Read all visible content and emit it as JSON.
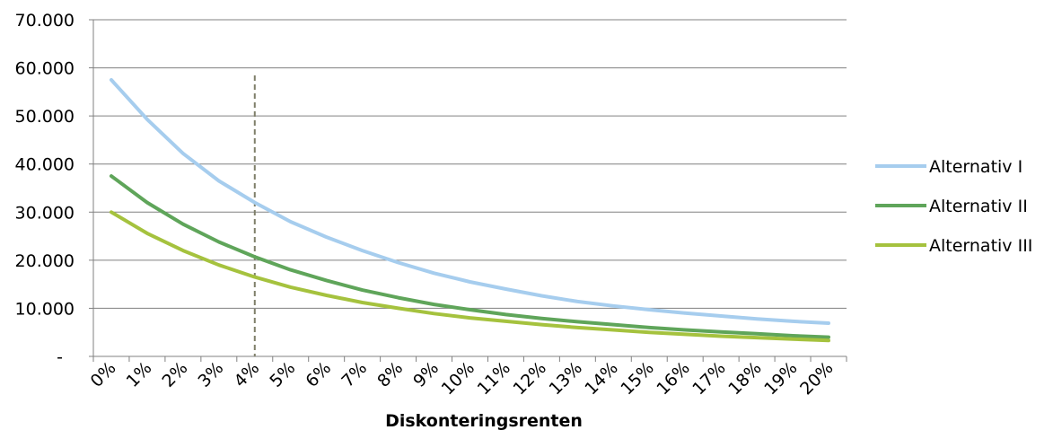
{
  "chart_data": {
    "type": "line",
    "xlabel": "Diskonteringsrenten",
    "ylabel": "",
    "categories": [
      "0%",
      "1%",
      "2%",
      "3%",
      "4%",
      "5%",
      "6%",
      "7%",
      "8%",
      "9%",
      "10%",
      "11%",
      "12%",
      "13%",
      "14%",
      "15%",
      "16%",
      "17%",
      "18%",
      "19%",
      "20%"
    ],
    "y_tick_labels": [
      "-",
      "10.000",
      "20.000",
      "30.000",
      "40.000",
      "50.000",
      "60.000",
      "70.000"
    ],
    "ylim": [
      0,
      70000
    ],
    "grid": true,
    "legend_position": "right",
    "reference_line": {
      "category": "4%",
      "style": "dashed",
      "color": "#7f7f6a"
    },
    "series": [
      {
        "name": "Alternativ I",
        "color": "#a6cdee",
        "values": [
          57500,
          49300,
          42200,
          36500,
          32000,
          28000,
          24800,
          22000,
          19500,
          17300,
          15500,
          14000,
          12600,
          11400,
          10500,
          9700,
          9000,
          8400,
          7800,
          7300,
          6900
        ]
      },
      {
        "name": "Alternativ II",
        "color": "#5fa55a",
        "values": [
          37500,
          32000,
          27500,
          23800,
          20700,
          18000,
          15800,
          13800,
          12200,
          10800,
          9700,
          8700,
          7900,
          7200,
          6600,
          6000,
          5500,
          5100,
          4700,
          4300,
          4000
        ]
      },
      {
        "name": "Alternativ III",
        "color": "#a5c23e",
        "values": [
          30000,
          25600,
          22000,
          19000,
          16500,
          14400,
          12700,
          11200,
          10000,
          8900,
          8000,
          7300,
          6600,
          6000,
          5500,
          5000,
          4600,
          4200,
          3900,
          3600,
          3300
        ]
      }
    ]
  }
}
